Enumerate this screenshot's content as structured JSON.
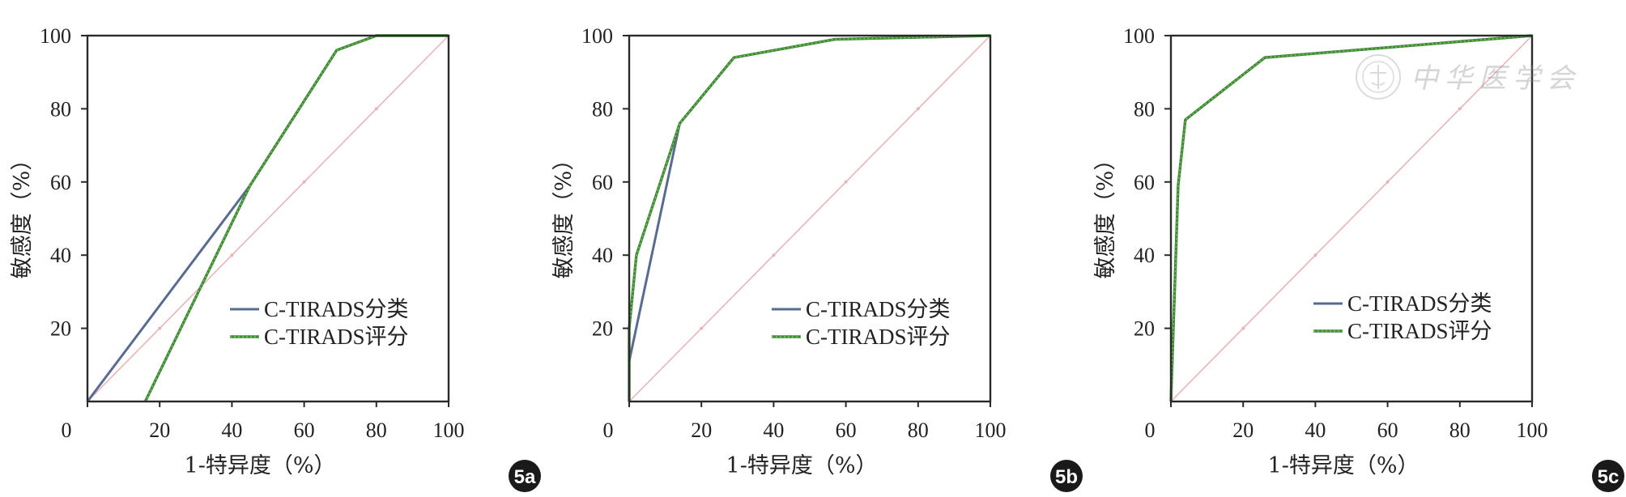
{
  "colors": {
    "series1": "#5a6b92",
    "series2": "#3f8a3a",
    "series2_dot": "#8fcf5a",
    "reference": "#e8b4b8",
    "badge": "#1a1a1a"
  },
  "watermark": {
    "text": "中华医学会"
  },
  "chart_data": [
    {
      "type": "line",
      "label": "5a",
      "xlabel": "1-特异度（%）",
      "ylabel": "敏感度（%）",
      "xlim": [
        0,
        100
      ],
      "ylim": [
        0,
        100
      ],
      "xticks": [
        "0",
        "20",
        "40",
        "60",
        "80",
        "100"
      ],
      "yticks": [
        "20",
        "40",
        "60",
        "80",
        "100"
      ],
      "series": [
        {
          "name": "C-TIRADS分类",
          "x": [
            0,
            45,
            69,
            80,
            100
          ],
          "y": [
            0,
            59,
            96,
            100,
            100
          ]
        },
        {
          "name": "C-TIRADS评分",
          "x": [
            16,
            45,
            69,
            80,
            100
          ],
          "y": [
            0,
            59,
            96,
            100,
            100
          ]
        }
      ],
      "legend_position": "bottom-right"
    },
    {
      "type": "line",
      "label": "5b",
      "xlabel": "1-特异度（%）",
      "ylabel": "敏感度（%）",
      "xlim": [
        0,
        100
      ],
      "ylim": [
        0,
        100
      ],
      "xticks": [
        "0",
        "20",
        "40",
        "60",
        "80",
        "100"
      ],
      "yticks": [
        "20",
        "40",
        "60",
        "80",
        "100"
      ],
      "series": [
        {
          "name": "C-TIRADS分类",
          "x": [
            0,
            0,
            14,
            29,
            57,
            100
          ],
          "y": [
            0,
            11,
            76,
            94,
            99,
            100
          ]
        },
        {
          "name": "C-TIRADS评分",
          "x": [
            0,
            0,
            2,
            14,
            29,
            57,
            100
          ],
          "y": [
            0,
            20,
            40,
            76,
            94,
            99,
            100
          ]
        }
      ],
      "legend_position": "bottom-right"
    },
    {
      "type": "line",
      "label": "5c",
      "xlabel": "1-特异度（%）",
      "ylabel": "敏感度（%）",
      "xlim": [
        0,
        100
      ],
      "ylim": [
        0,
        100
      ],
      "xticks": [
        "0",
        "20",
        "40",
        "60",
        "80",
        "100"
      ],
      "yticks": [
        "20",
        "40",
        "60",
        "80",
        "100"
      ],
      "series": [
        {
          "name": "C-TIRADS分类",
          "x": [
            0,
            2,
            4,
            26,
            100
          ],
          "y": [
            0,
            59,
            77,
            94,
            100
          ]
        },
        {
          "name": "C-TIRADS评分",
          "x": [
            0,
            2,
            4,
            26,
            100
          ],
          "y": [
            0,
            59,
            77,
            94,
            100
          ]
        }
      ],
      "legend_position": "bottom-right"
    }
  ]
}
